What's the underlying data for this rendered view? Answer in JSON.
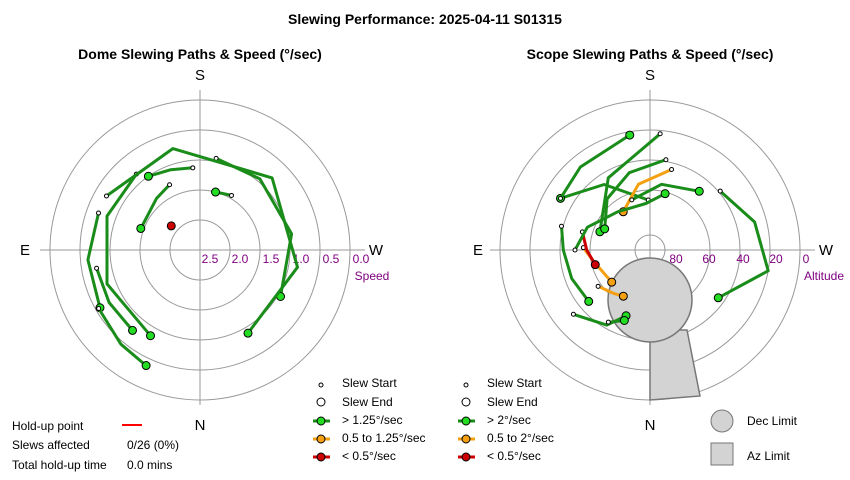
{
  "title": "Slewing Performance: 2025-04-11 S01315",
  "colors": {
    "green": "#1a8c1a",
    "green_dot": "#22dd22",
    "orange": "#f5a010",
    "red": "#cc0000",
    "ring": "#999999",
    "tick": "#800080",
    "limit_fill": "#d3d3d3"
  },
  "chart_data": [
    {
      "type": "polar-slew-paths",
      "title": "Dome Slewing Paths & Speed (°/sec)",
      "directions": {
        "top": "S",
        "bottom": "N",
        "left": "E",
        "right": "W"
      },
      "radial_label": "Speed",
      "ticks": [
        "2.5",
        "2.0",
        "1.5",
        "1.0",
        "0.5",
        "0.0"
      ],
      "paths": [
        {
          "az": [
            10,
            40,
            80,
            120
          ],
          "r": [
            0.62,
            0.62,
            0.62,
            0.62
          ],
          "speed": "fast"
        },
        {
          "az": [
            -40,
            -70,
            -110,
            -150
          ],
          "r": [
            0.66,
            0.66,
            0.66,
            0.66
          ],
          "speed": "fast"
        },
        {
          "az": [
            -60,
            -15,
            45,
            100,
            150
          ],
          "r": [
            0.72,
            0.7,
            0.68,
            0.66,
            0.64
          ],
          "speed": "fast"
        },
        {
          "az": [
            -25,
            -40,
            -70
          ],
          "r": [
            0.48,
            0.45,
            0.42
          ],
          "speed": "fast"
        },
        {
          "az": [
            -5,
            -20,
            -35
          ],
          "r": [
            0.55,
            0.57,
            0.6
          ],
          "speed": "fast"
        },
        {
          "az": [
            -70,
            -95,
            -120
          ],
          "r": [
            0.72,
            0.75,
            0.77
          ],
          "speed": "fast"
        },
        {
          "az": [
            -100,
            -120,
            -140
          ],
          "r": [
            0.7,
            0.7,
            0.7
          ],
          "speed": "fast"
        },
        {
          "az": [
            -120,
            -140,
            -155
          ],
          "r": [
            0.78,
            0.82,
            0.85
          ],
          "speed": "fast"
        },
        {
          "az": [
            30,
            15
          ],
          "r": [
            0.42,
            0.4
          ],
          "speed": "fast"
        },
        {
          "az": [
            -50
          ],
          "r": [
            0.25
          ],
          "speed": "slow"
        }
      ]
    },
    {
      "type": "polar-slew-paths",
      "title": "Scope Slewing Paths & Speed (°/sec)",
      "directions": {
        "top": "S",
        "bottom": "N",
        "left": "E",
        "right": "W"
      },
      "radial_label": "Altitude",
      "ticks": [
        "80",
        "60",
        "40",
        "20",
        "0"
      ],
      "paths": [
        {
          "az": [
            -2,
            -35,
            -60
          ],
          "alt": [
            60,
            42,
            28
          ],
          "speed": "fast"
        },
        {
          "az": [
            -60,
            -40,
            -10
          ],
          "alt": [
            28,
            25,
            20
          ],
          "speed": "fast"
        },
        {
          "az": [
            5,
            -30,
            -70
          ],
          "alt": [
            20,
            40,
            58
          ],
          "speed": "fast"
        },
        {
          "az": [
            10,
            -15,
            -40,
            -65
          ],
          "alt": [
            35,
            42,
            50,
            60
          ],
          "speed": "fast"
        },
        {
          "az": [
            -75,
            -90,
            -110,
            -130
          ],
          "alt": [
            35,
            38,
            40,
            42
          ],
          "speed": "fast"
        },
        {
          "az": [
            15,
            -10,
            -35
          ],
          "alt": [
            40,
            50,
            62
          ],
          "speed": "medium"
        },
        {
          "az": [
            -88,
            -100,
            -130
          ],
          "alt": [
            50,
            55,
            60
          ],
          "speed": "medium"
        },
        {
          "az": [
            -75,
            -90,
            -105
          ],
          "alt": [
            48,
            52,
            56
          ],
          "speed": "slow"
        },
        {
          "az": [
            -130,
            -150,
            -160
          ],
          "alt": [
            30,
            38,
            48
          ],
          "speed": "fast"
        },
        {
          "az": [
            50,
            75,
            100,
            125
          ],
          "alt": [
            35,
            25,
            18,
            40
          ],
          "speed": "fast"
        },
        {
          "az": [
            -20,
            10,
            40
          ],
          "alt": [
            58,
            50,
            44
          ],
          "speed": "fast"
        },
        {
          "az": [
            -125,
            -140,
            -150
          ],
          "alt": [
            52,
            56,
            58
          ],
          "speed": "medium"
        },
        {
          "az": [
            -90,
            -70,
            -40,
            -5,
            15
          ],
          "alt": [
            45,
            50,
            60,
            62,
            55
          ],
          "speed": "fast"
        },
        {
          "az": [
            -150,
            -160
          ],
          "alt": [
            40,
            45
          ],
          "speed": "fast"
        }
      ]
    }
  ],
  "dome_legend": {
    "start": "Slew Start",
    "end": "Slew End",
    "fast": "> 1.25°/sec",
    "medium": "0.5 to 1.25°/sec",
    "slow": "< 0.5°/sec"
  },
  "scope_legend": {
    "start": "Slew Start",
    "end": "Slew End",
    "fast": "> 2°/sec",
    "medium": "0.5 to 2°/sec",
    "slow": "< 0.5°/sec",
    "dec_limit": "Dec Limit",
    "az_limit": "Az Limit"
  },
  "holdup": {
    "point_label": "Hold-up point",
    "slews_label": "Slews affected",
    "slews_value": "0/26 (0%)",
    "total_label": "Total hold-up time",
    "total_value": "0.0 mins"
  }
}
